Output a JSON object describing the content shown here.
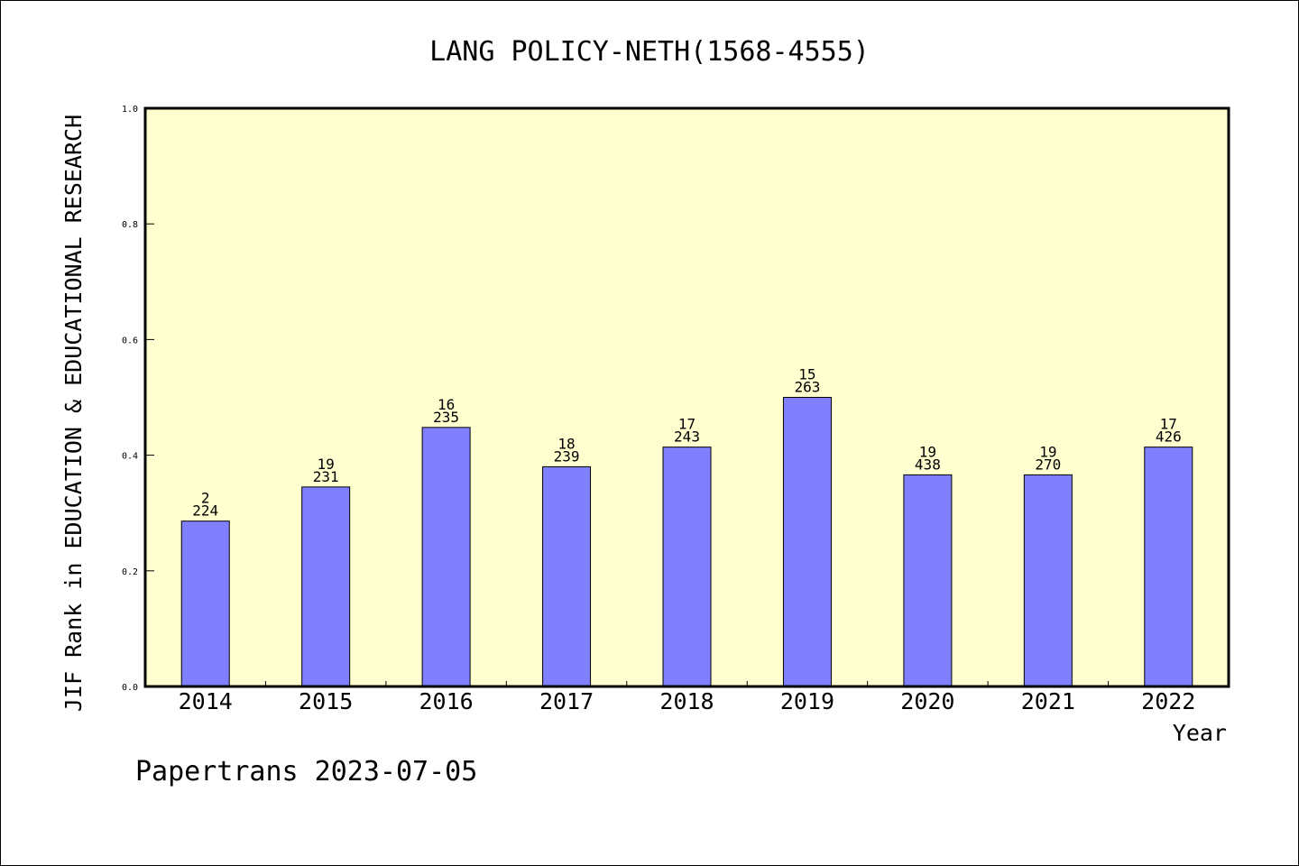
{
  "chart_data": {
    "type": "bar",
    "title": "LANG POLICY-NETH(1568-4555)",
    "xlabel": "Year",
    "ylabel": "JIF Rank in EDUCATION & EDUCATIONAL RESEARCH",
    "ylim": [
      0,
      1.0
    ],
    "yticks": [
      "0.0",
      "0.2",
      "0.4",
      "0.6",
      "0.8",
      "1.0"
    ],
    "grid": false,
    "background_color": "#ffffd0",
    "bar_color": "#8080ff",
    "categories": [
      "2014",
      "2015",
      "2016",
      "2017",
      "2018",
      "2019",
      "2020",
      "2021",
      "2022"
    ],
    "values": [
      0.286,
      0.345,
      0.448,
      0.38,
      0.414,
      0.5,
      0.366,
      0.366,
      0.414
    ],
    "rank": [
      "2",
      "19",
      "16",
      "18",
      "17",
      "15",
      "19",
      "19",
      "17"
    ],
    "total": [
      "224",
      "231",
      "235",
      "239",
      "243",
      "263",
      "438",
      "270",
      "426"
    ]
  },
  "footer": "Papertrans 2023-07-05"
}
